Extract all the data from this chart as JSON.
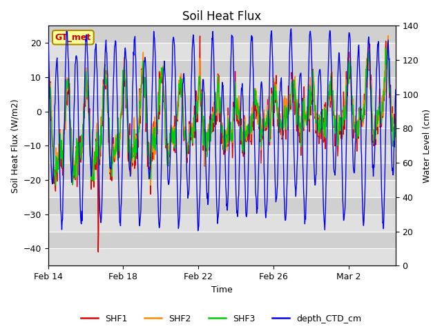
{
  "title": "Soil Heat Flux",
  "xlabel": "Time",
  "ylabel_left": "Soil Heat Flux (W/m2)",
  "ylabel_right": "Water Level (cm)",
  "ylim_left": [
    -45,
    25
  ],
  "ylim_right": [
    0,
    140
  ],
  "yticks_left": [
    -45,
    -40,
    -35,
    -30,
    -25,
    -20,
    -15,
    -10,
    -5,
    0,
    5,
    10,
    15,
    20,
    25
  ],
  "yticks_right": [
    0,
    20,
    40,
    60,
    80,
    100,
    120,
    140
  ],
  "xtick_labels": [
    "Feb 14",
    "Feb 18",
    "Feb 22",
    "Feb 26",
    "Mar 2"
  ],
  "legend_labels": [
    "SHF1",
    "SHF2",
    "SHF3",
    "depth_CTD_cm"
  ],
  "colors": {
    "SHF1": "#dd0000",
    "SHF2": "#ff8800",
    "SHF3": "#00cc00",
    "depth_CTD_cm": "#0000ee"
  },
  "annotation_text": "GT_met",
  "annotation_color": "#cc0000",
  "annotation_bg": "#ffff99",
  "plot_bg": "#ebebeb",
  "band_color_light": "#e8e8e8",
  "band_color_dark": "#d8d8d8",
  "seed": 42
}
